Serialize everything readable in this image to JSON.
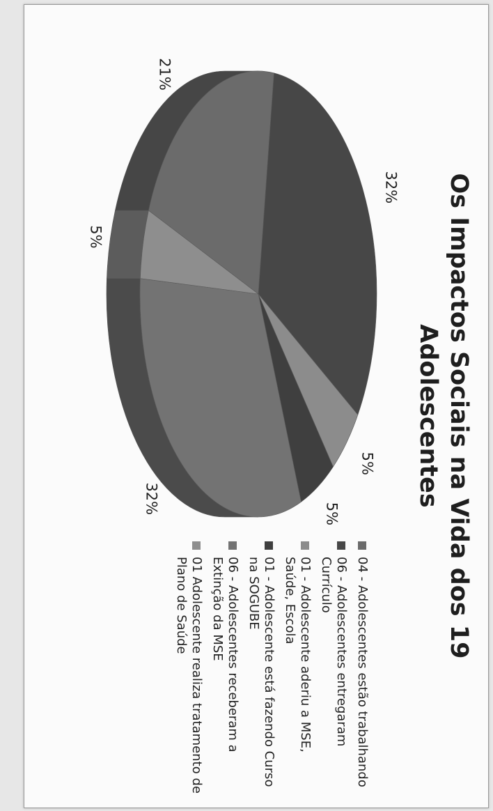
{
  "chart_data": {
    "type": "pie",
    "title": "Os Impactos Sociais na Vida dos 19 Adolescentes",
    "categories": [
      "04 - Adolescentes estão trabalhando",
      "06 - Adolescentes entregaram Currículo",
      "01 - Adolescente aderiu a MSE, Saúde, Escola",
      "01 - Adolescente está fazendo Curso na SOGUBE",
      "06 - Adolescentes receberam a Extinção da MSE",
      "01 Adolescente realiza tratamento de Plano de Saúde"
    ],
    "values": [
      21,
      32,
      5,
      5,
      32,
      5
    ],
    "labels": [
      "21%",
      "32%",
      "5%",
      "5%",
      "32%",
      "5%"
    ],
    "colors": [
      "#6b6b6b",
      "#474747",
      "#8c8c8c",
      "#3f3f3f",
      "#737373",
      "#8e8e8e"
    ],
    "legend_position": "right",
    "style": "3d"
  }
}
